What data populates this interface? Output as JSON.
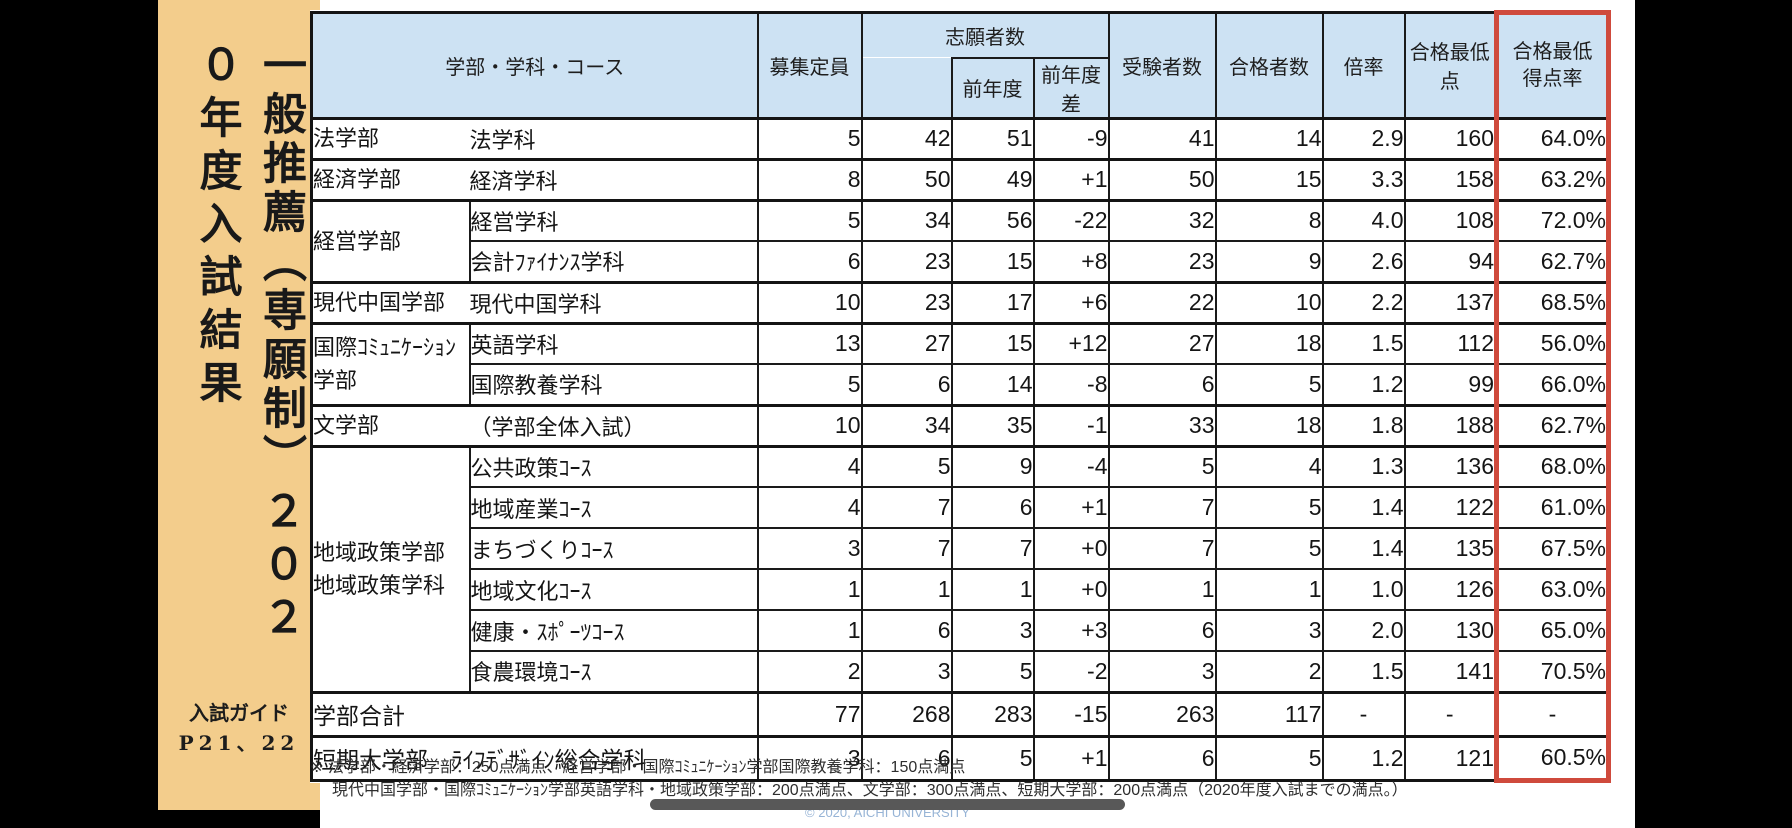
{
  "page": {
    "letterbox_color": "#000000",
    "slide_bg": "#ffffff"
  },
  "sidebar": {
    "bg_color": "#f3cd8c",
    "title_vertical_right": "一般推薦（専願制）",
    "title_vertical_left": "２０２０年度入試結果",
    "guide_line1": "入試ガイド",
    "guide_line2": "P21、22"
  },
  "table": {
    "header_bg": "#cde2f3",
    "highlight_border_color": "#cf4a3c",
    "header": {
      "name": "学部・学科・コース",
      "capacity": "募集定員",
      "applicants": "志願者数",
      "prev_year": "前年度",
      "prev_diff": "前年度差",
      "examinees": "受験者数",
      "accepted": "合格者数",
      "ratio": "倍率",
      "min_score": "合格最低点",
      "min_rate": "合格最低\n得点率"
    },
    "rows": [
      {
        "faculty": "法学部",
        "rowspan": 1,
        "divider": false,
        "sep": "thick",
        "dept": "法学科",
        "values": [
          "5",
          "42",
          "51",
          "-9",
          "41",
          "14",
          "2.9",
          "160",
          "64.0%"
        ]
      },
      {
        "faculty": "経済学部",
        "rowspan": 1,
        "divider": false,
        "sep": "thick",
        "dept": "経済学科",
        "values": [
          "8",
          "50",
          "49",
          "+1",
          "50",
          "15",
          "3.3",
          "158",
          "63.2%"
        ]
      },
      {
        "faculty": "経営学部",
        "rowspan": 2,
        "divider": true,
        "sep": "thick",
        "dept": "経営学科",
        "values": [
          "5",
          "34",
          "56",
          "-22",
          "32",
          "8",
          "4.0",
          "108",
          "72.0%"
        ]
      },
      {
        "faculty": null,
        "sep": "thin",
        "dept": "会計ﾌｧｲﾅﾝｽ学科",
        "values": [
          "6",
          "23",
          "15",
          "+8",
          "23",
          "9",
          "2.6",
          "94",
          "62.7%"
        ]
      },
      {
        "faculty": "現代中国学部",
        "rowspan": 1,
        "divider": false,
        "sep": "thick",
        "dept": "現代中国学科",
        "values": [
          "10",
          "23",
          "17",
          "+6",
          "22",
          "10",
          "2.2",
          "137",
          "68.5%"
        ]
      },
      {
        "faculty": "国際ｺﾐｭﾆｹｰｼｮﾝ\n学部",
        "rowspan": 2,
        "divider": true,
        "sep": "thick",
        "dept": "英語学科",
        "values": [
          "13",
          "27",
          "15",
          "+12",
          "27",
          "18",
          "1.5",
          "112",
          "56.0%"
        ]
      },
      {
        "faculty": null,
        "sep": "thin",
        "dept": "国際教養学科",
        "values": [
          "5",
          "6",
          "14",
          "-8",
          "6",
          "5",
          "1.2",
          "99",
          "66.0%"
        ]
      },
      {
        "faculty": "文学部",
        "rowspan": 1,
        "divider": false,
        "sep": "thick",
        "dept": "（学部全体入試）",
        "values": [
          "10",
          "34",
          "35",
          "-1",
          "33",
          "18",
          "1.8",
          "188",
          "62.7%"
        ]
      },
      {
        "faculty": "地域政策学部\n地域政策学科",
        "rowspan": 6,
        "divider": true,
        "sep": "thick",
        "dept": "公共政策ｺｰｽ",
        "values": [
          "4",
          "5",
          "9",
          "-4",
          "5",
          "4",
          "1.3",
          "136",
          "68.0%"
        ]
      },
      {
        "faculty": null,
        "sep": "thin",
        "dept": "地域産業ｺｰｽ",
        "values": [
          "4",
          "7",
          "6",
          "+1",
          "7",
          "5",
          "1.4",
          "122",
          "61.0%"
        ]
      },
      {
        "faculty": null,
        "sep": "thin",
        "dept": "まちづくりｺｰｽ",
        "values": [
          "3",
          "7",
          "7",
          "+0",
          "7",
          "5",
          "1.4",
          "135",
          "67.5%"
        ]
      },
      {
        "faculty": null,
        "sep": "thin",
        "dept": "地域文化ｺｰｽ",
        "values": [
          "1",
          "1",
          "1",
          "+0",
          "1",
          "1",
          "1.0",
          "126",
          "63.0%"
        ]
      },
      {
        "faculty": null,
        "sep": "thin",
        "dept": "健康・ｽﾎﾟｰﾂｺｰｽ",
        "values": [
          "1",
          "6",
          "3",
          "+3",
          "6",
          "3",
          "2.0",
          "130",
          "65.0%"
        ]
      },
      {
        "faculty": null,
        "sep": "thin",
        "dept": "食農環境ｺｰｽ",
        "values": [
          "2",
          "3",
          "5",
          "-2",
          "3",
          "2",
          "1.5",
          "141",
          "70.5%"
        ]
      }
    ],
    "total_row": {
      "label": "学部合計",
      "values": [
        "77",
        "268",
        "283",
        "-15",
        "263",
        "117",
        "-",
        "-",
        "-"
      ]
    },
    "junior_college_row": {
      "label": "短期大学部　ﾗｲﾌﾃﾞｻﾞｲﾝ総合学科",
      "values": [
        "3",
        "6",
        "5",
        "+1",
        "6",
        "5",
        "1.2",
        "121",
        "60.5%"
      ]
    }
  },
  "footnote": {
    "line1": "※ 法学部・経済学部：250点満点、経営学部・国際ｺﾐｭﾆｹｰｼｮﾝ学部国際教養学科：150点満点",
    "line2": "現代中国学部・国際ｺﾐｭﾆｹｰｼｮﾝ学部英語学科・地域政策学部：200点満点、文学部：300点満点、短期大学部：200点満点（2020年度入試までの満点。）"
  },
  "player": {
    "copyright": "© 2020, AICHI UNIVERSITY"
  }
}
